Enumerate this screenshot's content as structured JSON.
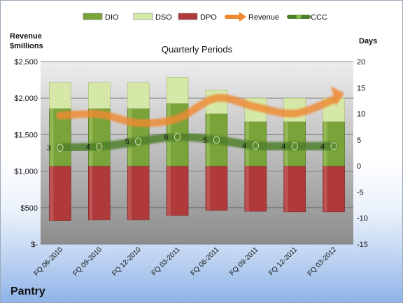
{
  "chart_data": {
    "type": "bar",
    "title": "Quarterly Periods",
    "left_axis_title_line1": "Revenue",
    "left_axis_title_line2": "$millions",
    "right_axis_title": "Days",
    "company": "Pantry",
    "categories": [
      "FQ 06-2010",
      "FQ 09-2010",
      "FQ 12-2010",
      "FQ 03-2011",
      "FQ 06-2011",
      "FQ 09-2011",
      "FQ 12-2011",
      "FQ 03-2012"
    ],
    "left_axis": {
      "min": 0,
      "max": 2500,
      "step": 500,
      "ticks": [
        "$-",
        "$500",
        "$1,000",
        "$1,500",
        "$2,000",
        "$2,500"
      ]
    },
    "right_axis": {
      "min": -15,
      "max": 20,
      "step": 5,
      "ticks": [
        "-15",
        "-10",
        "-5",
        "0",
        "5",
        "10",
        "15",
        "20"
      ]
    },
    "grid": true,
    "legend_position": "top",
    "series": [
      {
        "name": "DIO",
        "kind": "stacked-bar",
        "axis": "days",
        "color": "#7aa33a",
        "values": [
          11,
          11,
          11,
          12,
          10,
          8.5,
          8.5,
          8.5
        ]
      },
      {
        "name": "DSO",
        "kind": "stacked-bar",
        "axis": "days",
        "color": "#d6e8a8",
        "values": [
          5,
          5,
          5,
          5,
          4.5,
          4.5,
          4.5,
          4.5
        ]
      },
      {
        "name": "DPO",
        "kind": "stacked-bar-negative",
        "axis": "days",
        "color": "#b03a3a",
        "values": [
          -10.5,
          -10.3,
          -10.3,
          -9.5,
          -8.5,
          -8.7,
          -8.8,
          -8.8
        ]
      },
      {
        "name": "Revenue",
        "kind": "line",
        "axis": "revenue",
        "color": "#f08a30",
        "values": [
          1760,
          1780,
          1660,
          1720,
          2000,
          1880,
          1790,
          1980
        ]
      },
      {
        "name": "CCC",
        "kind": "line",
        "axis": "days",
        "color": "#4f7f2a",
        "values": [
          3.5,
          3.7,
          4.7,
          5.6,
          5.0,
          3.9,
          3.8,
          3.8
        ],
        "labels": [
          "3",
          "4",
          "5",
          "6",
          "5",
          "4",
          "4",
          "4"
        ]
      }
    ]
  }
}
